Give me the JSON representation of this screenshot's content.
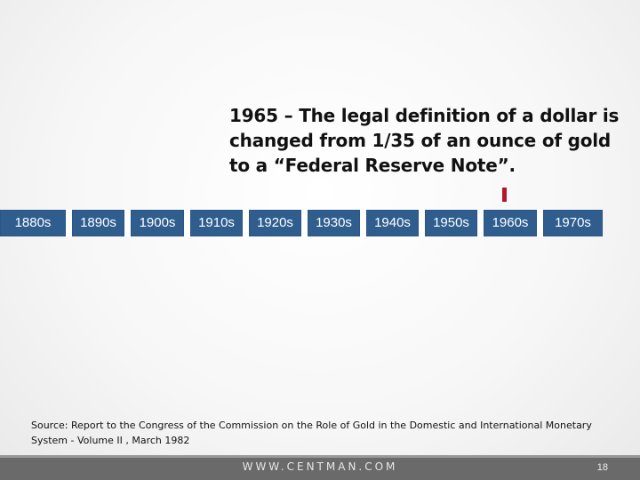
{
  "annotation": {
    "text": "1965 – The legal definition of a dollar is changed from 1/35 of an ounce of gold to a “Federal Reserve Note”."
  },
  "timeline": {
    "decades": [
      "1880s",
      "1890s",
      "1900s",
      "1910s",
      "1920s",
      "1930s",
      "1940s",
      "1950s",
      "1960s",
      "1970s"
    ],
    "marker_year": 1965,
    "colors": {
      "box": "#2f5e8e",
      "marker": "#b3152b"
    }
  },
  "source": {
    "text": "Source: Report to the Congress of the Commission on the Role of Gold in the Domestic and International Monetary System - Volume II , March 1982"
  },
  "footer": {
    "url": "WWW.CENTMAN.COM",
    "page_number": "18"
  }
}
